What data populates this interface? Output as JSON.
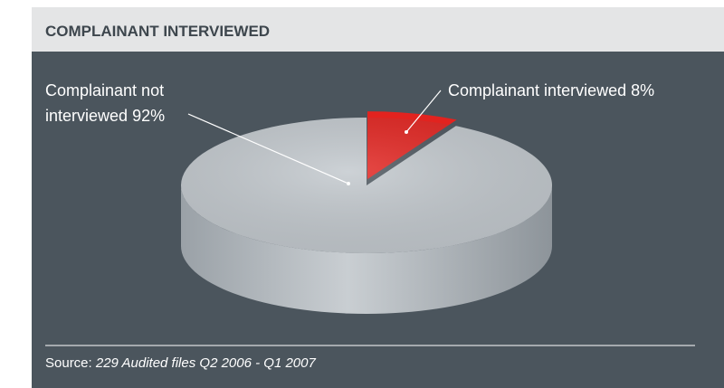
{
  "chart_data": {
    "type": "pie3d",
    "title": "COMPLAINANT INTERVIEWED",
    "categories": [
      "Complainant not interviewed",
      "Complainant interviewed"
    ],
    "values": [
      92,
      8
    ],
    "value_labels": [
      "92%",
      "8%"
    ],
    "colors": [
      "#c2c8cd",
      "#e2231f"
    ],
    "source_label": "Source:",
    "source": "229 Audited files Q2 2006 - Q1 2007"
  }
}
